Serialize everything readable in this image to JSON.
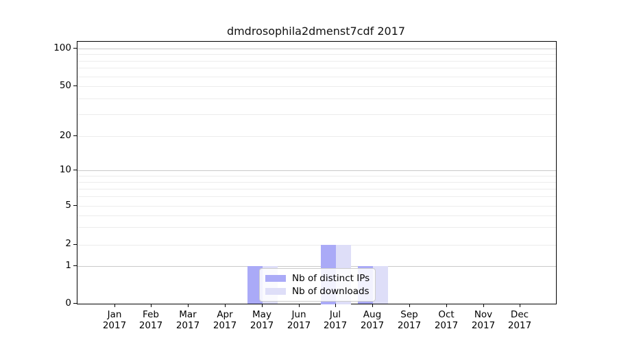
{
  "chart_data": {
    "type": "bar",
    "title": "dmdrosophila2dmenst7cdf 2017",
    "categories": [
      "Jan 2017",
      "Feb 2017",
      "Mar 2017",
      "Apr 2017",
      "May 2017",
      "Jun 2017",
      "Jul 2017",
      "Aug 2017",
      "Sep 2017",
      "Oct 2017",
      "Nov 2017",
      "Dec 2017"
    ],
    "series": [
      {
        "name": "Nb of distinct IPs",
        "color": "#aaaaf7",
        "values": [
          0,
          0,
          0,
          0,
          1,
          0,
          2,
          1,
          0,
          0,
          0,
          0
        ]
      },
      {
        "name": "Nb of downloads",
        "color": "#dedef8",
        "values": [
          0,
          0,
          0,
          0,
          1,
          0,
          2,
          1,
          0,
          0,
          0,
          0
        ]
      }
    ],
    "yticks": [
      0,
      1,
      2,
      5,
      10,
      20,
      50,
      100
    ],
    "xlabel": "",
    "ylabel": "",
    "y_scale": "symlog",
    "ylim": [
      0,
      110
    ],
    "grid": true,
    "legend_position": "lower-center-inside"
  }
}
